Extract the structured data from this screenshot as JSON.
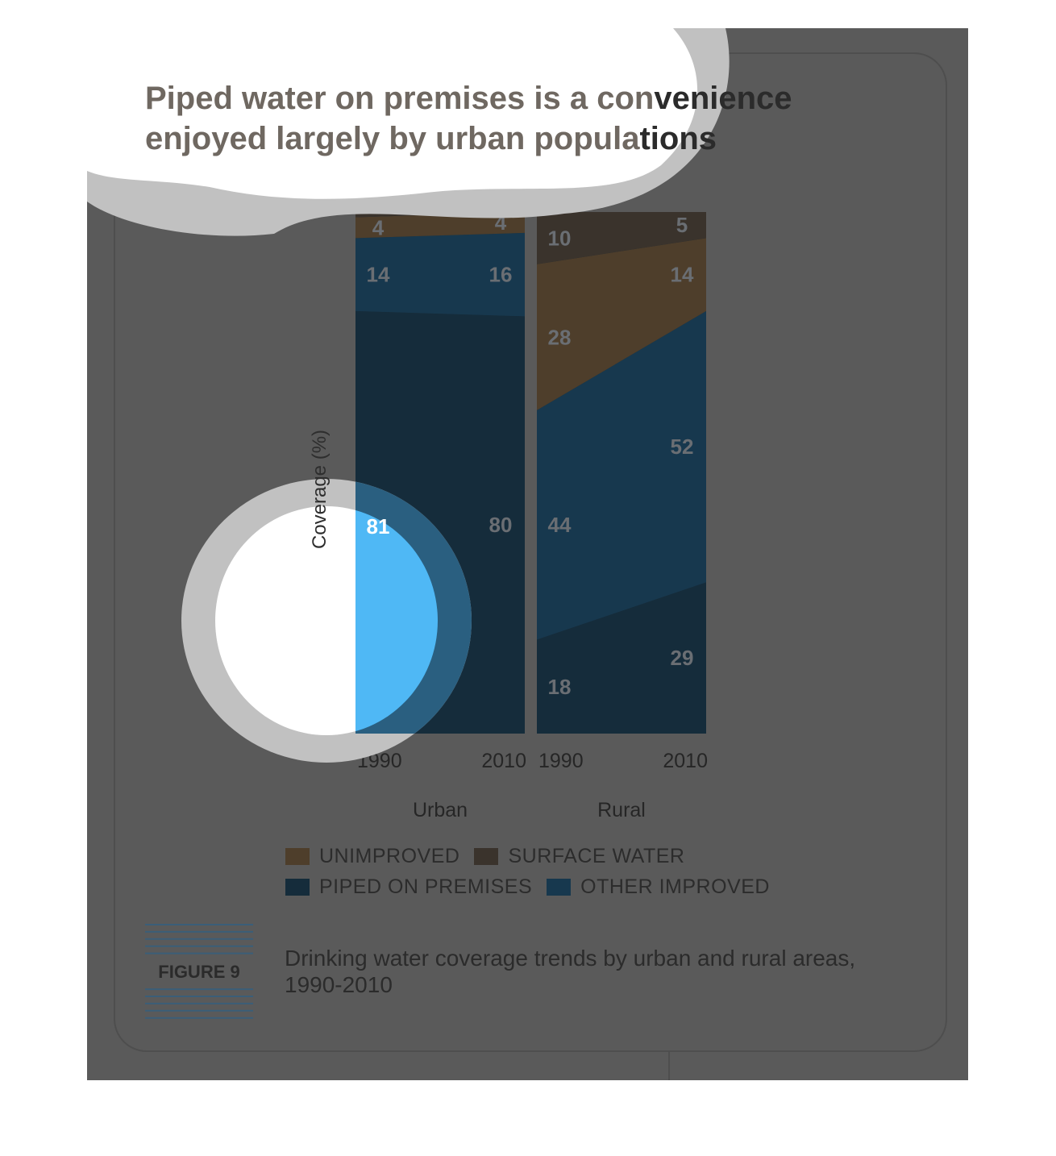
{
  "title": {
    "line1_main": "Piped water on premises is a con",
    "line1_dark": "venience",
    "line2_main": "enjoyed largely by urban popula",
    "line2_dark": "tions"
  },
  "figure": {
    "label": "FIGURE 9",
    "caption": "Drinking water coverage trends by urban and rural areas, 1990-2010"
  },
  "colors": {
    "unimproved": "#4e3e2b",
    "surface_water": "#3a332c",
    "piped_on_premises": "#152c3b",
    "other_improved": "#17384e",
    "panel_background": "#5a5a5a"
  },
  "chart_data": {
    "type": "area",
    "ylabel": "Coverage (%)",
    "ylim": [
      0,
      100
    ],
    "x": [
      "1990",
      "2010"
    ],
    "panels": [
      {
        "name": "Urban",
        "series": [
          {
            "name": "PIPED ON PREMISES",
            "values": [
              81,
              80
            ]
          },
          {
            "name": "OTHER IMPROVED",
            "values": [
              14,
              16
            ]
          },
          {
            "name": "UNIMPROVED",
            "values": [
              4,
              4
            ]
          },
          {
            "name": "SURFACE WATER",
            "values": [
              1,
              0
            ]
          }
        ]
      },
      {
        "name": "Rural",
        "series": [
          {
            "name": "PIPED ON PREMISES",
            "values": [
              18,
              29
            ]
          },
          {
            "name": "OTHER IMPROVED",
            "values": [
              44,
              52
            ]
          },
          {
            "name": "UNIMPROVED",
            "values": [
              28,
              14
            ]
          },
          {
            "name": "SURFACE WATER",
            "values": [
              10,
              5
            ]
          }
        ]
      }
    ],
    "legend": [
      "UNIMPROVED",
      "SURFACE WATER",
      "PIPED ON PREMISES",
      "OTHER IMPROVED"
    ]
  }
}
